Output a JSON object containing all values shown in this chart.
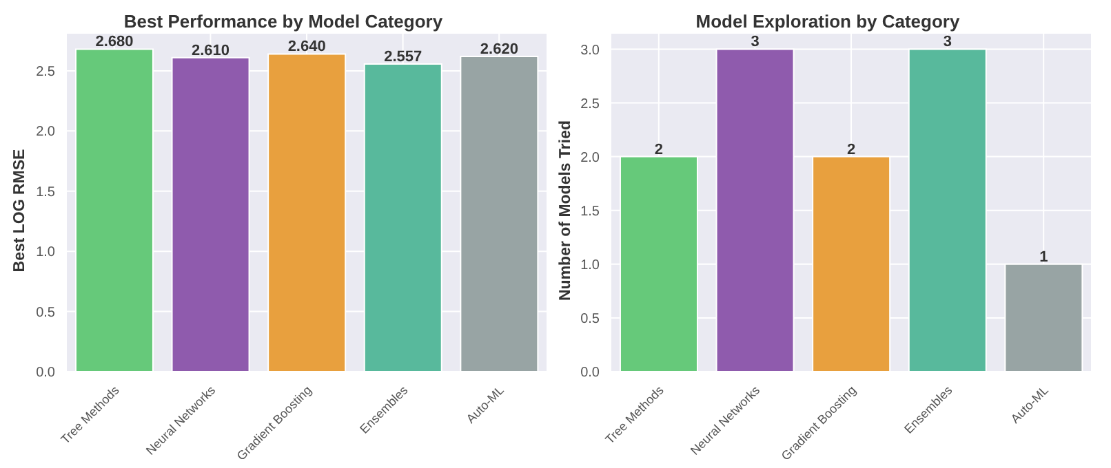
{
  "chart_data": [
    {
      "type": "bar",
      "title": "Best Performance by Model Category",
      "ylabel": "Best LOG RMSE",
      "categories": [
        "Tree Methods",
        "Neural Networks",
        "Gradient Boosting",
        "Ensembles",
        "Auto-ML"
      ],
      "values": [
        2.68,
        2.61,
        2.64,
        2.557,
        2.62
      ],
      "value_labels": [
        "2.680",
        "2.610",
        "2.640",
        "2.557",
        "2.620"
      ],
      "colors": [
        "#66c97a",
        "#8f5bad",
        "#e8a03e",
        "#58b99c",
        "#98a4a4"
      ],
      "ylim": [
        0,
        2.814
      ],
      "yticks": [
        {
          "value": 0,
          "label": "0.0"
        },
        {
          "value": 0.5,
          "label": "0.5"
        },
        {
          "value": 1,
          "label": "1.0"
        },
        {
          "value": 1.5,
          "label": "1.5"
        },
        {
          "value": 2,
          "label": "2.0"
        },
        {
          "value": 2.5,
          "label": "2.5"
        }
      ],
      "grid": true
    },
    {
      "type": "bar",
      "title": "Model Exploration by Category",
      "ylabel": "Number of Models Tried",
      "categories": [
        "Tree Methods",
        "Neural Networks",
        "Gradient Boosting",
        "Ensembles",
        "Auto-ML"
      ],
      "values": [
        2,
        3,
        2,
        3,
        1
      ],
      "data_labels": true,
      "colors": [
        "#66c97a",
        "#8f5bad",
        "#e8a03e",
        "#58b99c",
        "#98a4a4"
      ],
      "ylim": [
        0,
        3.15
      ],
      "yticks": [
        {
          "value": 0,
          "label": "0.0"
        },
        {
          "value": 0.5,
          "label": "0.5"
        },
        {
          "value": 1,
          "label": "1.0"
        },
        {
          "value": 1.5,
          "label": "1.5"
        },
        {
          "value": 2,
          "label": "2.0"
        },
        {
          "value": 2.5,
          "label": "2.5"
        },
        {
          "value": 3,
          "label": "3.0"
        }
      ],
      "grid": true
    }
  ]
}
